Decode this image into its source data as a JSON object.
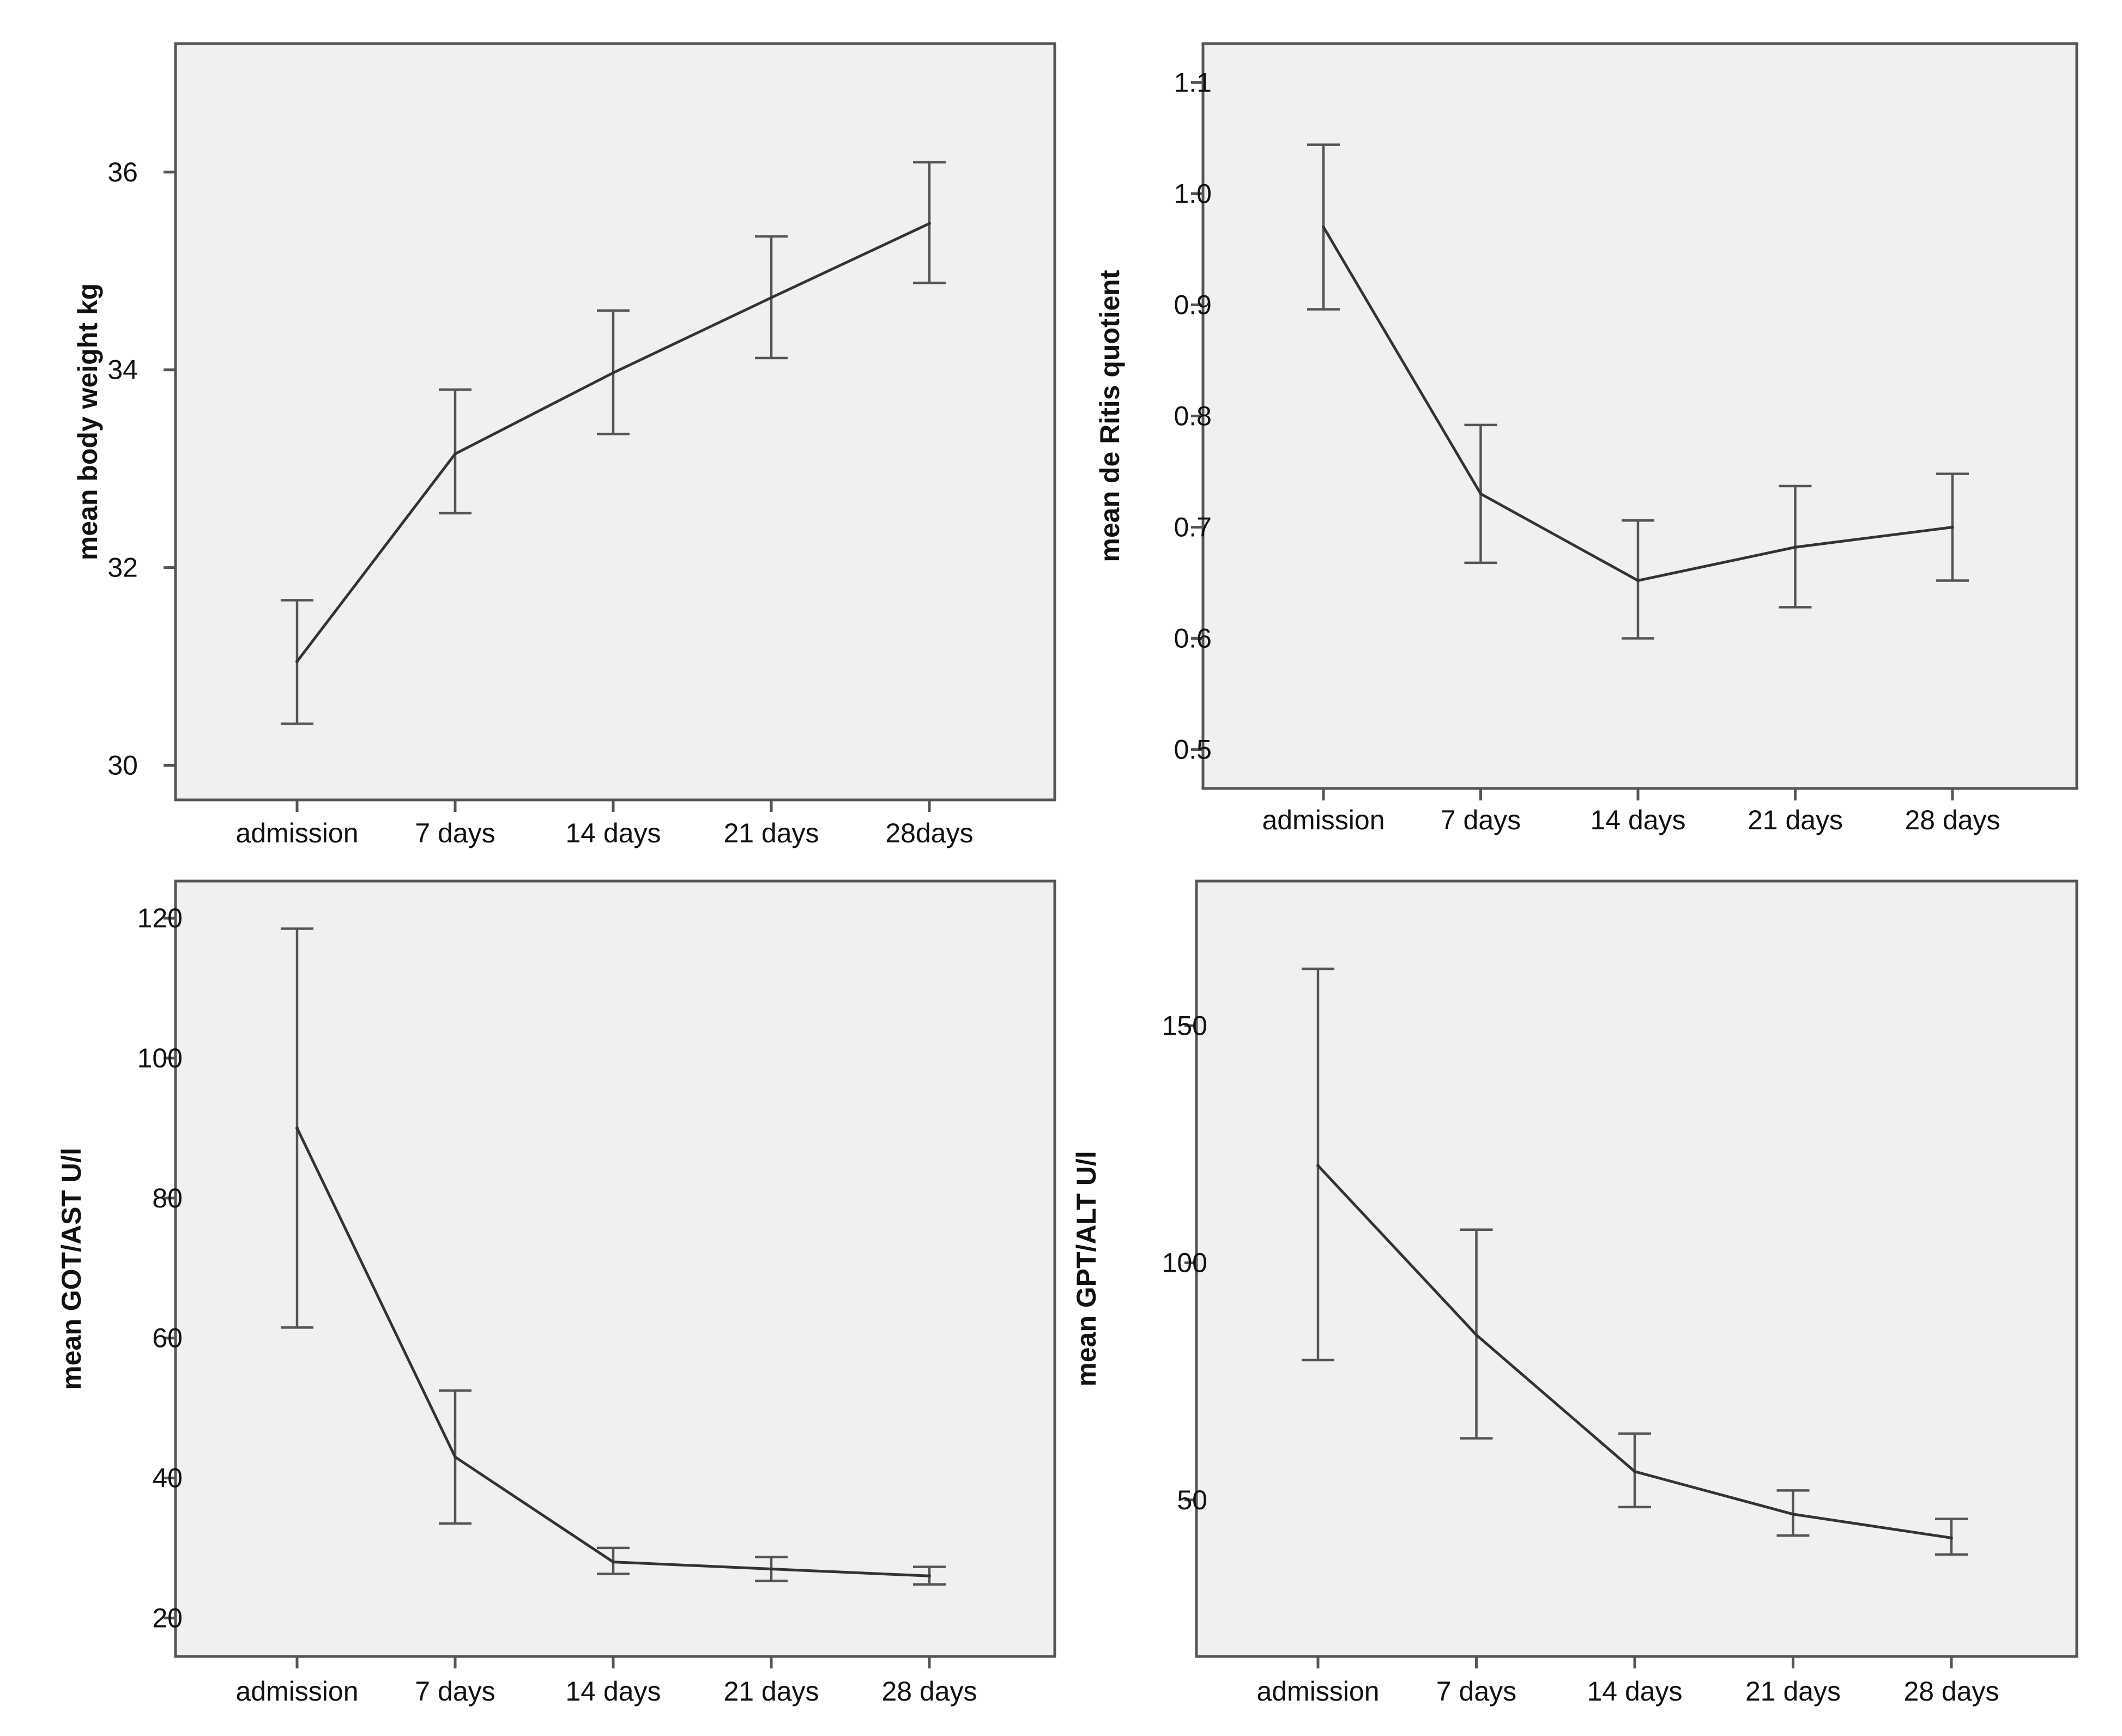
{
  "chart_data": [
    {
      "type": "line",
      "title": "",
      "xlabel": "",
      "ylabel": "mean body weight  kg",
      "categories": [
        "admission",
        "7 days",
        "14 days",
        "21 days",
        "28days"
      ],
      "values": [
        31.05,
        33.15,
        33.97,
        34.73,
        35.48
      ],
      "error_low": [
        30.42,
        32.55,
        33.35,
        34.12,
        34.88
      ],
      "error_high": [
        31.67,
        33.8,
        34.6,
        35.35,
        36.1
      ],
      "ylim": [
        29.65,
        37.3
      ],
      "yticks": [
        30,
        32,
        34,
        36
      ],
      "ytick_labels": [
        "30",
        "32",
        "34",
        "36"
      ]
    },
    {
      "type": "line",
      "title": "",
      "xlabel": "",
      "ylabel": "mean  de Ritis quotient",
      "categories": [
        "admission",
        "7 days",
        "14 days",
        "21 days",
        "28 days"
      ],
      "values": [
        0.97,
        0.73,
        0.652,
        0.682,
        0.7
      ],
      "error_low": [
        0.896,
        0.668,
        0.6,
        0.628,
        0.652
      ],
      "error_high": [
        1.044,
        0.792,
        0.706,
        0.737,
        0.748
      ],
      "ylim": [
        0.465,
        1.135
      ],
      "yticks": [
        0.5,
        0.6,
        0.7,
        0.8,
        0.9,
        1.0,
        1.1
      ],
      "ytick_labels": [
        "0.5",
        "0.6",
        "0.7",
        "0.8",
        "0.9",
        "1.0",
        "1.1"
      ]
    },
    {
      "type": "line",
      "title": "",
      "xlabel": "",
      "ylabel": "mean GOT/AST  U/l",
      "categories": [
        "admission",
        "7 days",
        "14 days",
        "21 days",
        "28 days"
      ],
      "values": [
        90,
        43,
        28,
        27,
        26
      ],
      "error_low": [
        61.5,
        33.5,
        26.3,
        25.3,
        24.8
      ],
      "error_high": [
        118.5,
        52.5,
        30.0,
        28.7,
        27.3
      ],
      "ylim": [
        14.5,
        125.3
      ],
      "yticks": [
        20,
        40,
        60,
        80,
        100,
        120
      ],
      "ytick_labels": [
        "20",
        "40",
        "60",
        "80",
        "100",
        "120"
      ]
    },
    {
      "type": "line",
      "title": "",
      "xlabel": "",
      "ylabel": "mean GPT/ALT U/l",
      "categories": [
        "admission",
        "7 days",
        "14 days",
        "21 days",
        "28 days"
      ],
      "values": [
        120.5,
        84.8,
        56,
        47,
        42
      ],
      "error_low": [
        79.5,
        63,
        48.5,
        42.5,
        38.5
      ],
      "error_high": [
        162,
        107,
        64,
        52,
        46
      ],
      "ylim": [
        17,
        180.5
      ],
      "yticks": [
        50,
        100,
        150
      ],
      "ytick_labels": [
        "50",
        "100",
        "150"
      ]
    }
  ]
}
